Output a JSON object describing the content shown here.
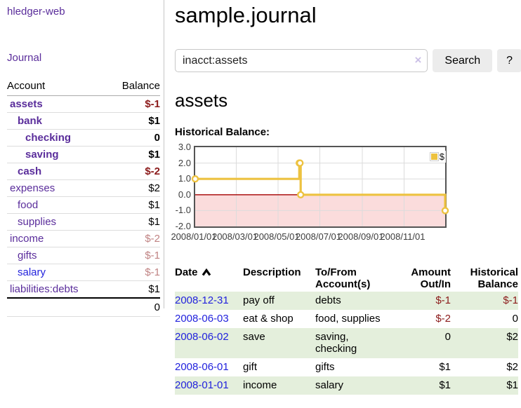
{
  "sidebar": {
    "brand": "hledger-web",
    "nav": {
      "journal": "Journal"
    },
    "accounts_table": {
      "headers": {
        "account": "Account",
        "balance": "Balance"
      },
      "rows": [
        {
          "name": "assets",
          "indent": 0,
          "bold": true,
          "balance": "$-1",
          "balance_class": "neg-strong",
          "link_class": "visited"
        },
        {
          "name": "bank",
          "indent": 1,
          "bold": true,
          "balance": "$1",
          "balance_class": "pos",
          "link_class": "visited"
        },
        {
          "name": "checking",
          "indent": 2,
          "bold": true,
          "balance": "0",
          "balance_class": "pos",
          "link_class": "visited"
        },
        {
          "name": "saving",
          "indent": 2,
          "bold": true,
          "balance": "$1",
          "balance_class": "pos",
          "link_class": "visited"
        },
        {
          "name": "cash",
          "indent": 1,
          "bold": true,
          "balance": "$-2",
          "balance_class": "neg-strong",
          "link_class": "visited"
        },
        {
          "name": "expenses",
          "indent": 0,
          "bold": false,
          "balance": "$2",
          "balance_class": "pos",
          "link_class": "visited"
        },
        {
          "name": "food",
          "indent": 1,
          "bold": false,
          "balance": "$1",
          "balance_class": "pos",
          "link_class": "visited"
        },
        {
          "name": "supplies",
          "indent": 1,
          "bold": false,
          "balance": "$1",
          "balance_class": "pos",
          "link_class": "visited"
        },
        {
          "name": "income",
          "indent": 0,
          "bold": false,
          "balance": "$-2",
          "balance_class": "neg-soft",
          "link_class": "visited"
        },
        {
          "name": "gifts",
          "indent": 1,
          "bold": false,
          "balance": "$-1",
          "balance_class": "neg-soft",
          "link_class": "visited"
        },
        {
          "name": "salary",
          "indent": 1,
          "bold": false,
          "balance": "$-1",
          "balance_class": "neg-soft",
          "link_class": "unvisited"
        },
        {
          "name": "liabilities:debts",
          "indent": 0,
          "bold": false,
          "balance": "$1",
          "balance_class": "pos",
          "link_class": "visited"
        }
      ],
      "total": "0"
    }
  },
  "main": {
    "title": "sample.journal",
    "search": {
      "query": "inacct:assets",
      "clear_icon": "×",
      "button": "Search",
      "help_button": "?"
    },
    "account_heading": "assets",
    "chart_label": "Historical Balance:"
  },
  "chart_data": {
    "type": "line",
    "title": "Historical Balance",
    "step": true,
    "series": [
      {
        "name": "$",
        "color": "#EDC240",
        "points": [
          {
            "date": "2008-01-01",
            "day": 0,
            "value": 1
          },
          {
            "date": "2008-06-01",
            "day": 152,
            "value": 2
          },
          {
            "date": "2008-06-02",
            "day": 153,
            "value": 2
          },
          {
            "date": "2008-06-03",
            "day": 154,
            "value": 0
          },
          {
            "date": "2008-12-31",
            "day": 365,
            "value": -1
          }
        ]
      }
    ],
    "x_ticks": [
      {
        "label": "2008/01/01",
        "day": 0
      },
      {
        "label": "2008/03/01",
        "day": 60
      },
      {
        "label": "2008/05/01",
        "day": 121
      },
      {
        "label": "2008/07/01",
        "day": 182
      },
      {
        "label": "2008/09/01",
        "day": 244
      },
      {
        "label": "2008/11/01",
        "day": 305
      }
    ],
    "y_ticks": [
      {
        "label": "3.0",
        "value": 3
      },
      {
        "label": "2.0",
        "value": 2
      },
      {
        "label": "1.0",
        "value": 1
      },
      {
        "label": "0.0",
        "value": 0
      },
      {
        "label": "-1.0",
        "value": -1
      },
      {
        "label": "-2.0",
        "value": -2
      }
    ],
    "xlim_days": [
      0,
      365
    ],
    "ylim": [
      -2,
      3
    ],
    "legend": {
      "label": "$",
      "position": "top-right"
    },
    "grid": true,
    "negative_region_color": "#fbdcdc",
    "zero_line_color": "#a40000",
    "grid_color": "#dcdcdc",
    "border_color": "#545454"
  },
  "register": {
    "headers": {
      "date": "Date",
      "description": "Description",
      "tofrom": "To/From Account(s)",
      "amount": "Amount Out/In",
      "balance": "Historical Balance"
    },
    "sort_icon": "chevron-up",
    "rows": [
      {
        "date": "2008-12-31",
        "description": "pay off",
        "accounts": "debts",
        "amount": "$-1",
        "amount_class": "neg",
        "balance": "$-1",
        "balance_class": "neg"
      },
      {
        "date": "2008-06-03",
        "description": "eat & shop",
        "accounts": "food, supplies",
        "amount": "$-2",
        "amount_class": "neg",
        "balance": "0",
        "balance_class": "pos"
      },
      {
        "date": "2008-06-02",
        "description": "save",
        "accounts": "saving, checking",
        "amount": "0",
        "amount_class": "pos",
        "balance": "$2",
        "balance_class": "pos"
      },
      {
        "date": "2008-06-01",
        "description": "gift",
        "accounts": "gifts",
        "amount": "$1",
        "amount_class": "pos",
        "balance": "$2",
        "balance_class": "pos"
      },
      {
        "date": "2008-01-01",
        "description": "income",
        "accounts": "salary",
        "amount": "$1",
        "amount_class": "pos",
        "balance": "$1",
        "balance_class": "pos"
      }
    ]
  },
  "colors": {
    "link_visited_purple": "#5a2d9b",
    "link_unvisited_blue": "#2222dd",
    "negative_strong_red": "#8b1a1a",
    "negative_soft_rose": "#c08383",
    "row_stripe_green": "#e4efdc",
    "chart_line_gold": "#EDC240",
    "chart_negative_pink": "#fbdcdc",
    "button_gray": "#ececec"
  }
}
